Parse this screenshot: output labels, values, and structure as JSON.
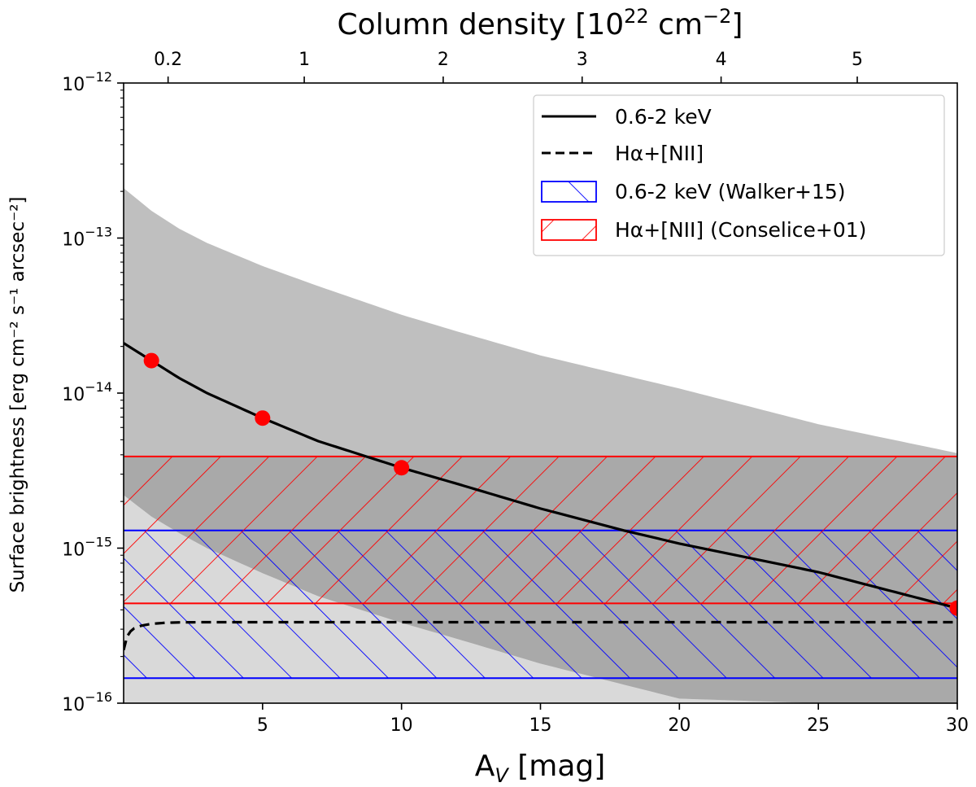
{
  "chart_data": {
    "type": "line",
    "xlabel_main": "A",
    "xlabel_sub": "V",
    "xlabel_tail": " [mag]",
    "top_xlabel_main": "Column density [10",
    "top_xlabel_sup1": "22",
    "top_xlabel_mid": " cm",
    "top_xlabel_sup2": "−2",
    "top_xlabel_tail": "]",
    "ylabel": "Surface brightness [erg cm⁻² s⁻¹ arcsec⁻²]",
    "xlim": [
      0,
      30
    ],
    "ylim_log10": [
      -16,
      -12
    ],
    "x_ticks": [
      5,
      10,
      15,
      20,
      25,
      30
    ],
    "x_tick_labels": [
      "5",
      "10",
      "15",
      "20",
      "25",
      "30"
    ],
    "y_ticks_exp": [
      -16,
      -15,
      -14,
      -13,
      -12
    ],
    "y_tick_base": "10",
    "y_tick_exponents": [
      "−16",
      "−15",
      "−14",
      "−13",
      "−12"
    ],
    "top_ticks_av": [
      1.6,
      6.5,
      11.5,
      16.5,
      21.5,
      26.4
    ],
    "top_tick_labels": [
      "0.2",
      "1",
      "2",
      "3",
      "4",
      "5"
    ],
    "series": [
      {
        "name": "0.6-2 keV",
        "style": "solid",
        "color": "#000000",
        "x": [
          0,
          1,
          2,
          3,
          5,
          7,
          10,
          12,
          15,
          18,
          20,
          25,
          30
        ],
        "y": [
          2.1e-14,
          1.62e-14,
          1.25e-14,
          1e-14,
          6.9e-15,
          4.9e-15,
          3.3e-15,
          2.6e-15,
          1.8e-15,
          1.3e-15,
          1.07e-15,
          7e-16,
          4.1e-16
        ]
      },
      {
        "name": "Hα+[NII]",
        "style": "dashed",
        "color": "#000000",
        "x": [
          0,
          0.1,
          0.3,
          0.6,
          1.0,
          1.5,
          2.0,
          3.0,
          5.0,
          10,
          20,
          30
        ],
        "y": [
          2.2e-16,
          2.65e-16,
          3e-16,
          3.15e-16,
          3.25e-16,
          3.3e-16,
          3.32e-16,
          3.33e-16,
          3.33e-16,
          3.33e-16,
          3.33e-16,
          3.33e-16
        ]
      }
    ],
    "points": {
      "name": "markers",
      "color": "#ff0000",
      "x": [
        1,
        5,
        10,
        30
      ],
      "y": [
        1.62e-14,
        6.9e-15,
        3.3e-15,
        4.1e-16
      ]
    },
    "gray_band": {
      "x": [
        0,
        1,
        2,
        3,
        5,
        7,
        10,
        12,
        15,
        20,
        25,
        30
      ],
      "upper": [
        2.1e-13,
        1.5e-13,
        1.15e-13,
        9.3e-14,
        6.6e-14,
        4.9e-14,
        3.2e-14,
        2.5e-14,
        1.75e-14,
        1.07e-14,
        6.3e-15,
        4.1e-15
      ],
      "lower": [
        2.2e-15,
        1.6e-15,
        1.25e-15,
        1e-15,
        6.9e-16,
        4.9e-16,
        3.3e-16,
        2.6e-16,
        1.8e-16,
        1.07e-16,
        1e-16,
        1e-16
      ],
      "color_upper": "#bfbfbf",
      "color_lower": "#d9d9d9",
      "color_overlap": "#a9a9a9"
    },
    "hatched_bands": [
      {
        "name": "0.6-2 keV (Walker+15)",
        "ymin": 1.45e-16,
        "ymax": 1.3e-15,
        "color": "#0000ff",
        "hatch": "backslash"
      },
      {
        "name": "Hα+[NII] (Conselice+01)",
        "ymin": 4.4e-16,
        "ymax": 3.9e-15,
        "color": "#ff0000",
        "hatch": "slash"
      }
    ],
    "legend": {
      "placement": "top-right",
      "entries": [
        "0.6-2 keV",
        "Hα+[NII]",
        "0.6-2 keV (Walker+15)",
        "Hα+[NII] (Conselice+01)"
      ]
    }
  }
}
